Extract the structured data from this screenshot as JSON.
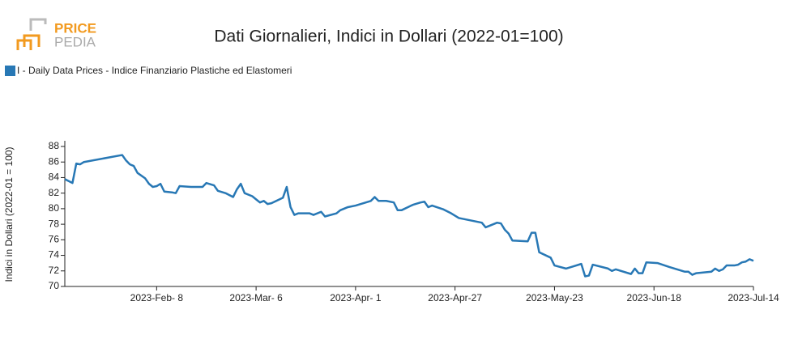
{
  "logo": {
    "line1": "PRICE",
    "line2": "PEDIA"
  },
  "chart_data": {
    "type": "line",
    "title": "Dati Giornalieri, Indici in Dollari (2022-01=100)",
    "y_label": "Indici in Dollari (2022-01 = 100)",
    "x": [
      "2023-01-15",
      "2023-01-17",
      "2023-01-18",
      "2023-01-19",
      "2023-01-20",
      "2023-01-30",
      "2023-01-31",
      "2023-02-01",
      "2023-02-02",
      "2023-02-03",
      "2023-02-05",
      "2023-02-06",
      "2023-02-07",
      "2023-02-08",
      "2023-02-09",
      "2023-02-10",
      "2023-02-12",
      "2023-02-13",
      "2023-02-14",
      "2023-02-17",
      "2023-02-20",
      "2023-02-21",
      "2023-02-23",
      "2023-02-24",
      "2023-02-26",
      "2023-02-28",
      "2023-03-01",
      "2023-03-02",
      "2023-03-03",
      "2023-03-05",
      "2023-03-06",
      "2023-03-07",
      "2023-03-08",
      "2023-03-09",
      "2023-03-10",
      "2023-03-13",
      "2023-03-14",
      "2023-03-15",
      "2023-03-16",
      "2023-03-17",
      "2023-03-20",
      "2023-03-21",
      "2023-03-23",
      "2023-03-24",
      "2023-03-27",
      "2023-03-28",
      "2023-03-30",
      "2023-04-01",
      "2023-04-03",
      "2023-04-05",
      "2023-04-06",
      "2023-04-07",
      "2023-04-09",
      "2023-04-11",
      "2023-04-12",
      "2023-04-13",
      "2023-04-16",
      "2023-04-18",
      "2023-04-19",
      "2023-04-20",
      "2023-04-21",
      "2023-04-24",
      "2023-04-26",
      "2023-04-28",
      "2023-05-04",
      "2023-05-05",
      "2023-05-08",
      "2023-05-09",
      "2023-05-10",
      "2023-05-11",
      "2023-05-12",
      "2023-05-16",
      "2023-05-17",
      "2023-05-18",
      "2023-05-19",
      "2023-05-22",
      "2023-05-23",
      "2023-05-26",
      "2023-05-28",
      "2023-05-30",
      "2023-05-31",
      "2023-06-01",
      "2023-06-02",
      "2023-06-06",
      "2023-06-07",
      "2023-06-08",
      "2023-06-12",
      "2023-06-13",
      "2023-06-14",
      "2023-06-15",
      "2023-06-16",
      "2023-06-19",
      "2023-06-22",
      "2023-06-26",
      "2023-06-27",
      "2023-06-28",
      "2023-06-29",
      "2023-07-03",
      "2023-07-04",
      "2023-07-05",
      "2023-07-06",
      "2023-07-07",
      "2023-07-09",
      "2023-07-10",
      "2023-07-11",
      "2023-07-12",
      "2023-07-13",
      "2023-07-14"
    ],
    "series": [
      {
        "name": "I - Daily Data Prices - Indice Finanziario Plastiche ed Elastomeri",
        "color": "#2878b5",
        "values": [
          83.8,
          83.3,
          85.8,
          85.7,
          86.0,
          86.9,
          86.2,
          85.7,
          85.5,
          84.6,
          83.9,
          83.2,
          82.8,
          82.9,
          83.2,
          82.2,
          82.1,
          82.0,
          82.9,
          82.8,
          82.8,
          83.3,
          83.0,
          82.3,
          82.0,
          81.5,
          82.5,
          83.2,
          82.0,
          81.6,
          81.2,
          80.8,
          81.0,
          80.6,
          80.7,
          81.4,
          82.8,
          80.2,
          79.2,
          79.4,
          79.4,
          79.2,
          79.6,
          79.0,
          79.4,
          79.8,
          80.2,
          80.4,
          80.7,
          81.0,
          81.5,
          81.0,
          81.0,
          80.8,
          79.8,
          79.8,
          80.5,
          80.8,
          80.9,
          80.2,
          80.4,
          79.9,
          79.4,
          78.8,
          78.2,
          77.6,
          78.2,
          78.1,
          77.3,
          76.8,
          75.9,
          75.8,
          76.9,
          76.9,
          74.4,
          73.7,
          72.7,
          72.3,
          72.6,
          72.9,
          71.3,
          71.4,
          72.8,
          72.3,
          72.0,
          72.2,
          71.6,
          72.3,
          71.7,
          71.7,
          73.1,
          73.0,
          72.5,
          71.9,
          71.9,
          71.5,
          71.7,
          71.9,
          72.3,
          72.0,
          72.2,
          72.7,
          72.7,
          72.8,
          73.1,
          73.2,
          73.5,
          73.3
        ]
      }
    ],
    "xlim": [
      "2023-01-15",
      "2023-07-14"
    ],
    "xticks": [
      {
        "value": "2023-02-08",
        "label": "2023-Feb- 8"
      },
      {
        "value": "2023-03-06",
        "label": "2023-Mar- 6"
      },
      {
        "value": "2023-04-01",
        "label": "2023-Apr- 1"
      },
      {
        "value": "2023-04-27",
        "label": "2023-Apr-27"
      },
      {
        "value": "2023-05-23",
        "label": "2023-May-23"
      },
      {
        "value": "2023-06-18",
        "label": "2023-Jun-18"
      },
      {
        "value": "2023-07-14",
        "label": "2023-Jul-14"
      }
    ],
    "ylim": [
      70,
      88
    ],
    "yticks": [
      70,
      72,
      74,
      76,
      78,
      80,
      82,
      84,
      86,
      88
    ],
    "grid": false
  }
}
